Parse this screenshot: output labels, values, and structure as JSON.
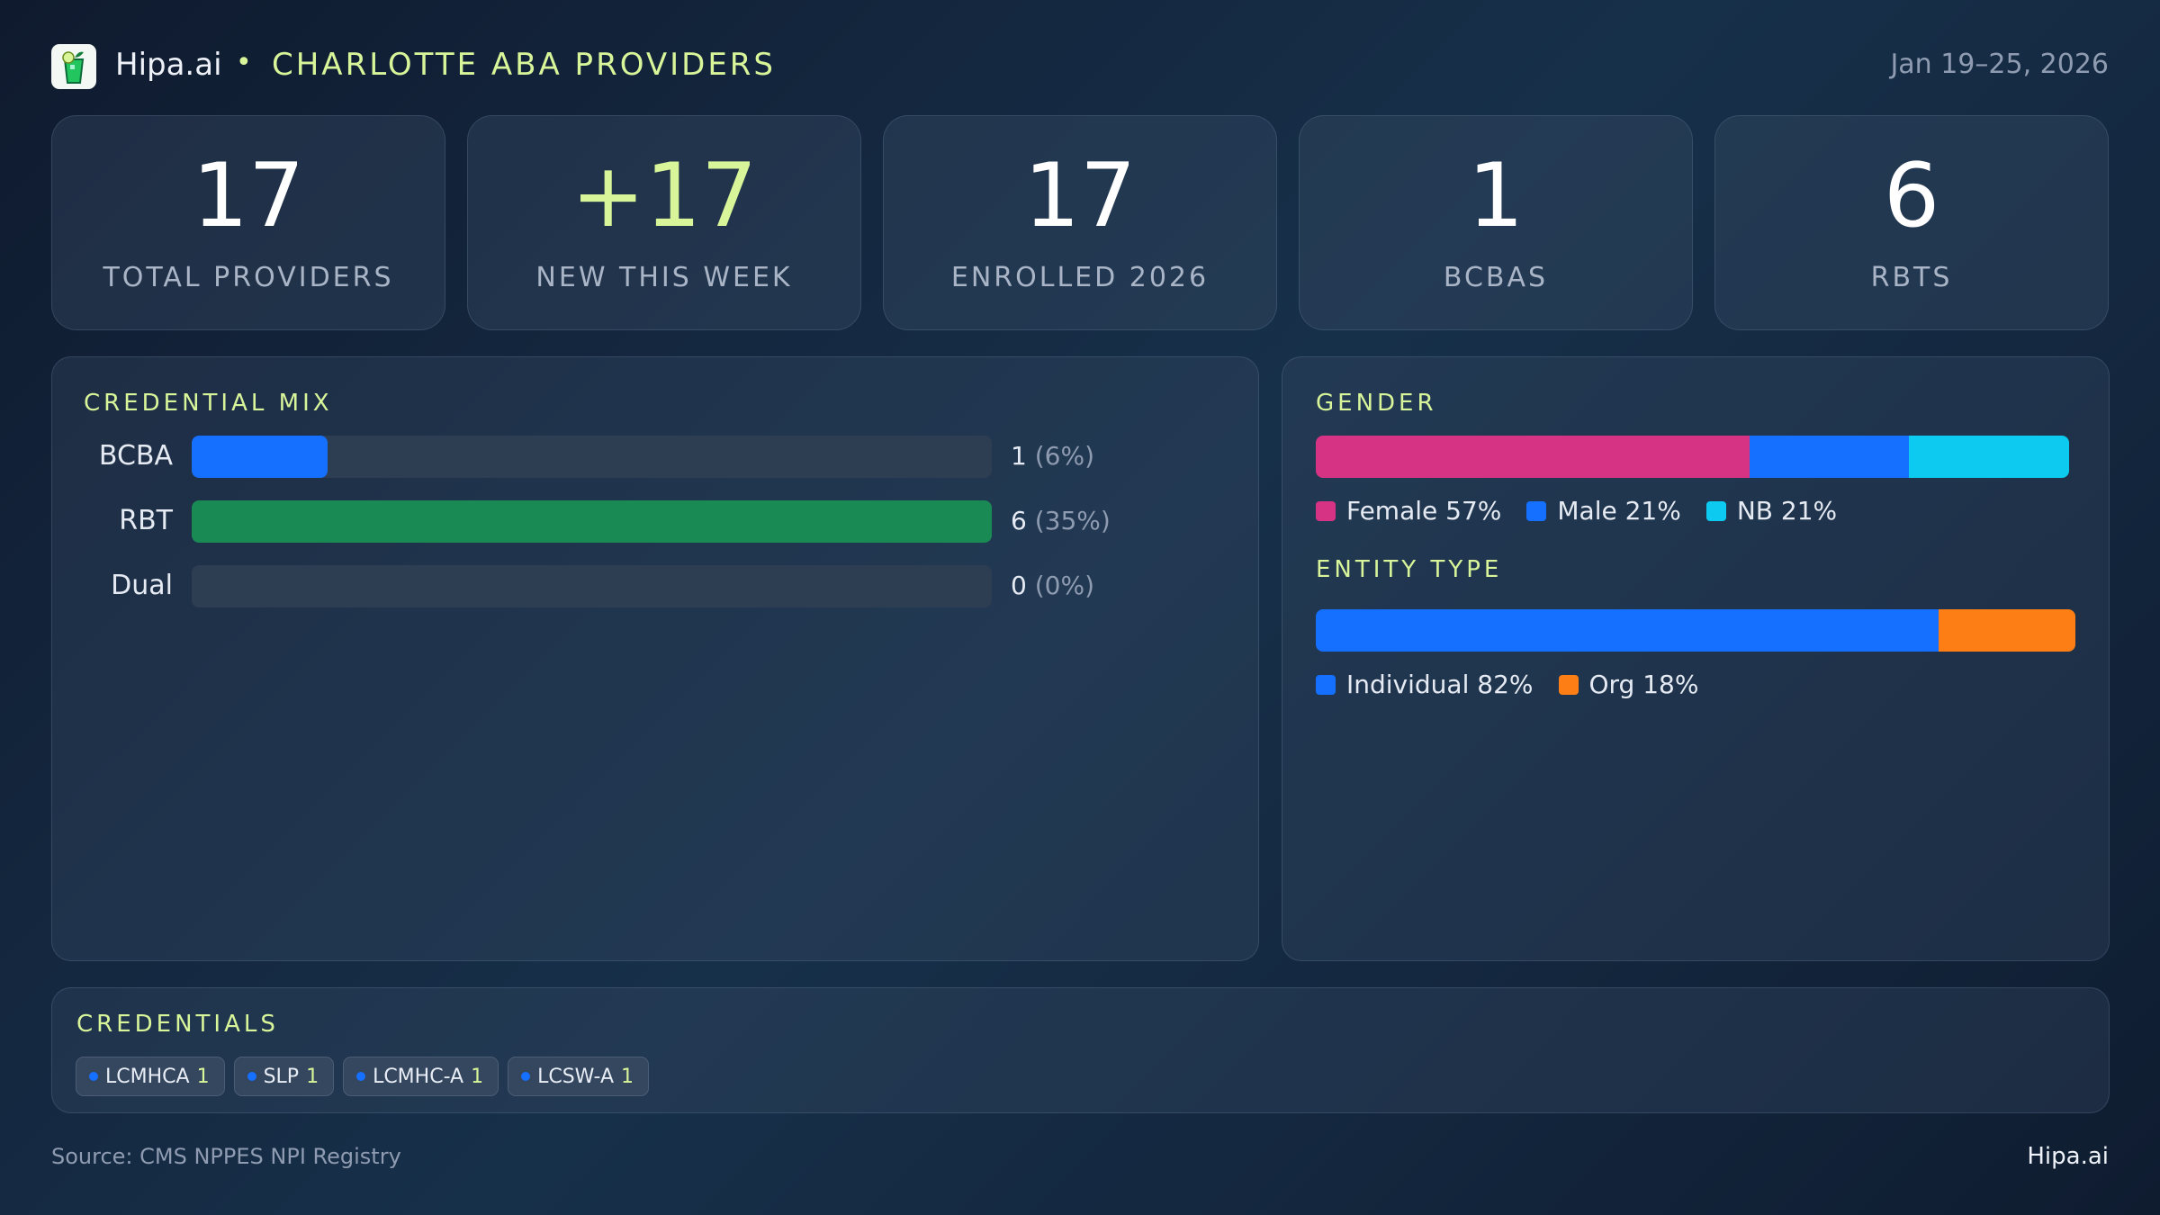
{
  "header": {
    "brand": "Hipa.ai",
    "separator": "•",
    "title": "CHARLOTTE ABA PROVIDERS",
    "date_range": "Jan 19–25, 2026"
  },
  "kpis": [
    {
      "value": "17",
      "label": "TOTAL PROVIDERS"
    },
    {
      "value": "+17",
      "label": "NEW THIS WEEK"
    },
    {
      "value": "17",
      "label": "ENROLLED 2026"
    },
    {
      "value": "1",
      "label": "BCBAS"
    },
    {
      "value": "6",
      "label": "RBTS"
    }
  ],
  "credential_mix": {
    "title": "CREDENTIAL MIX",
    "rows": [
      {
        "label": "BCBA",
        "count": "1",
        "pct": "(6%)",
        "fraction": 0.17,
        "color": "#1570ff"
      },
      {
        "label": "RBT",
        "count": "6",
        "pct": "(35%)",
        "fraction": 1.0,
        "color": "#1a8a55"
      },
      {
        "label": "Dual",
        "count": "0",
        "pct": "(0%)",
        "fraction": 0,
        "color": "#1570ff"
      }
    ]
  },
  "gender": {
    "title": "GENDER",
    "segments": [
      {
        "label": "Female 57%",
        "percent": 57,
        "color": "#d63384"
      },
      {
        "label": "Male 21%",
        "percent": 21,
        "color": "#1570ff"
      },
      {
        "label": "NB 21%",
        "percent": 21,
        "color": "#0dcaf0"
      }
    ]
  },
  "entity_type": {
    "title": "ENTITY TYPE",
    "segments": [
      {
        "label": "Individual 82%",
        "percent": 82,
        "color": "#1570ff"
      },
      {
        "label": "Org 18%",
        "percent": 18,
        "color": "#fd7e14"
      }
    ]
  },
  "credentials": {
    "title": "CREDENTIALS",
    "chips": [
      {
        "name": "LCMHCA",
        "count": "1"
      },
      {
        "name": "SLP",
        "count": "1"
      },
      {
        "name": "LCMHC-A",
        "count": "1"
      },
      {
        "name": "LCSW-A",
        "count": "1"
      }
    ]
  },
  "footer": {
    "source": "Source: CMS NPPES NPI Registry",
    "brand": "Hipa.ai"
  }
}
